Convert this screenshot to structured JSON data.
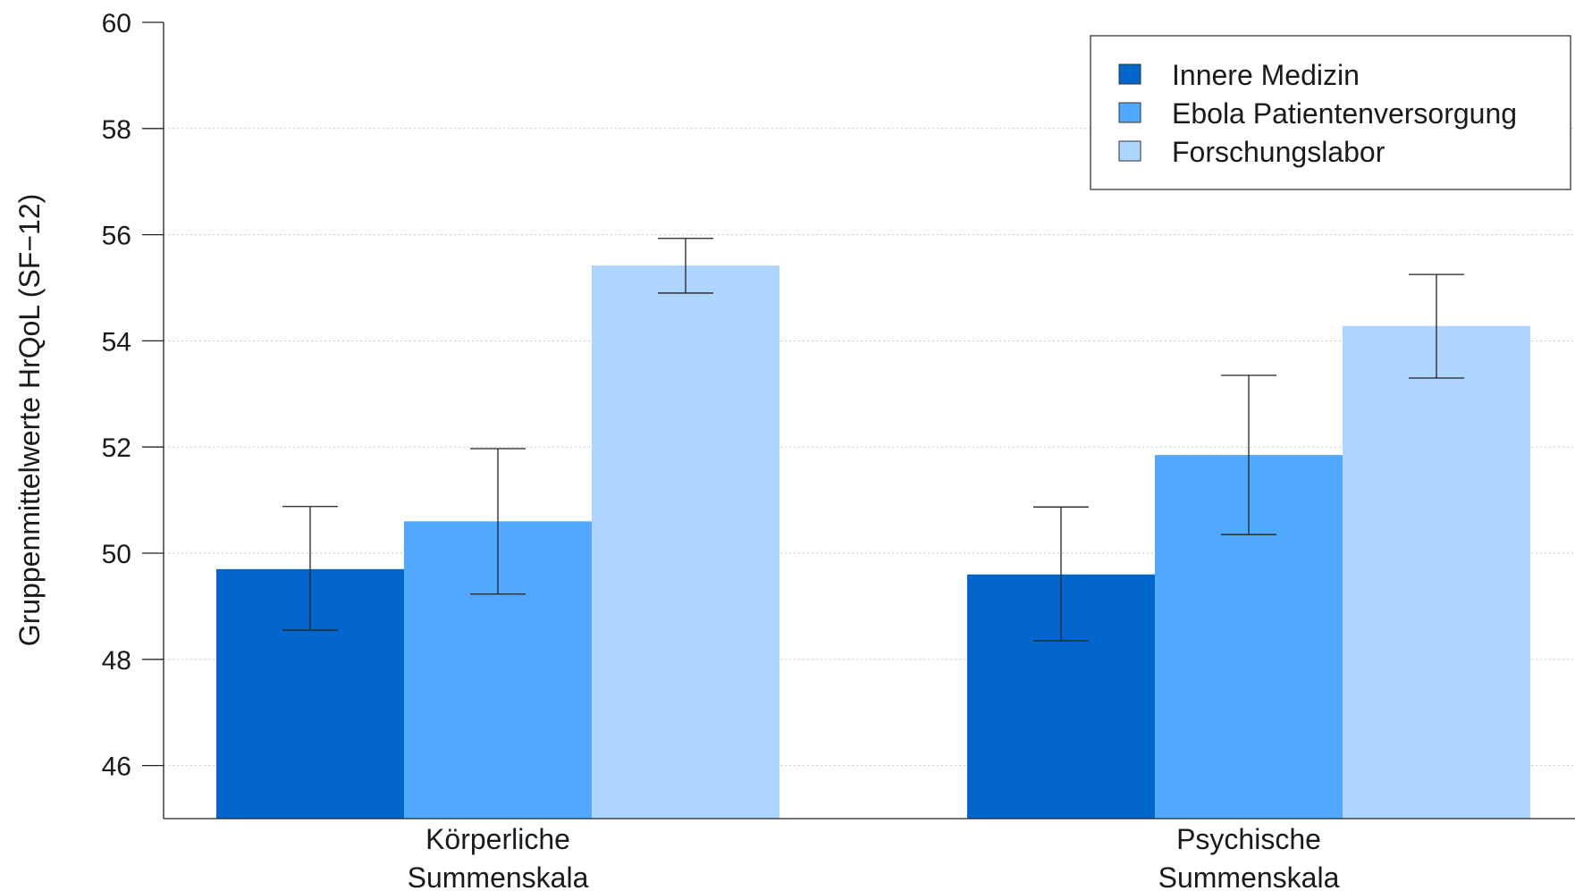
{
  "chart_data": {
    "type": "bar",
    "title": "",
    "xlabel": "",
    "ylabel": "Gruppenmittelwerte HrQoL (SF−12)",
    "ylim": [
      45,
      60
    ],
    "yticks": [
      46,
      48,
      50,
      52,
      54,
      56,
      58,
      60
    ],
    "grid": true,
    "legend_position": "top-right",
    "categories": [
      [
        "Körperliche",
        "Summenskala"
      ],
      [
        "Psychische",
        "Summenskala"
      ]
    ],
    "series": [
      {
        "name": "Innere Medizin",
        "color": "#0366cc",
        "values": [
          49.7,
          49.6
        ],
        "err_low": [
          48.55,
          48.35
        ],
        "err_high": [
          50.88,
          50.87
        ]
      },
      {
        "name": "Ebola Patientenversorgung",
        "color": "#51a8ff",
        "values": [
          50.6,
          51.85
        ],
        "err_low": [
          49.23,
          50.35
        ],
        "err_high": [
          51.97,
          53.35
        ]
      },
      {
        "name": "Forschungslabor",
        "color": "#aed5ff",
        "values": [
          55.42,
          54.28
        ],
        "err_low": [
          54.9,
          53.3
        ],
        "err_high": [
          55.93,
          55.25
        ]
      }
    ]
  }
}
